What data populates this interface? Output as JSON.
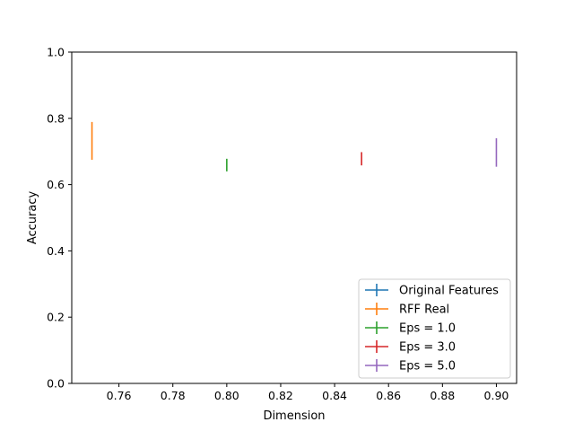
{
  "chart_data": {
    "type": "errorbar",
    "title": "",
    "xlabel": "Dimension",
    "ylabel": "Accuracy",
    "xlim": [
      0.7425,
      0.9075
    ],
    "ylim": [
      0.0,
      1.0
    ],
    "x_ticks": [
      "0.76",
      "0.78",
      "0.80",
      "0.82",
      "0.84",
      "0.86",
      "0.88",
      "0.90"
    ],
    "x_tick_values": [
      0.76,
      0.78,
      0.8,
      0.82,
      0.84,
      0.86,
      0.88,
      0.9
    ],
    "y_ticks": [
      "0.0",
      "0.2",
      "0.4",
      "0.6",
      "0.8",
      "1.0"
    ],
    "y_tick_values": [
      0.0,
      0.2,
      0.4,
      0.6,
      0.8,
      1.0
    ],
    "grid": false,
    "legend_position": "lower right",
    "series": [
      {
        "name": "Original Features",
        "color": "#1f77b4",
        "points": []
      },
      {
        "name": "RFF Real",
        "color": "#ff7f0e",
        "points": [
          {
            "x": 0.75,
            "y": 0.732,
            "yerr": 0.057
          }
        ]
      },
      {
        "name": "Eps = 1.0",
        "color": "#2ca02c",
        "points": [
          {
            "x": 0.8,
            "y": 0.659,
            "yerr": 0.019
          }
        ]
      },
      {
        "name": "Eps = 3.0",
        "color": "#d62728",
        "points": [
          {
            "x": 0.85,
            "y": 0.678,
            "yerr": 0.02
          }
        ]
      },
      {
        "name": "Eps = 5.0",
        "color": "#9467bd",
        "points": [
          {
            "x": 0.9,
            "y": 0.697,
            "yerr": 0.043
          }
        ]
      }
    ]
  }
}
